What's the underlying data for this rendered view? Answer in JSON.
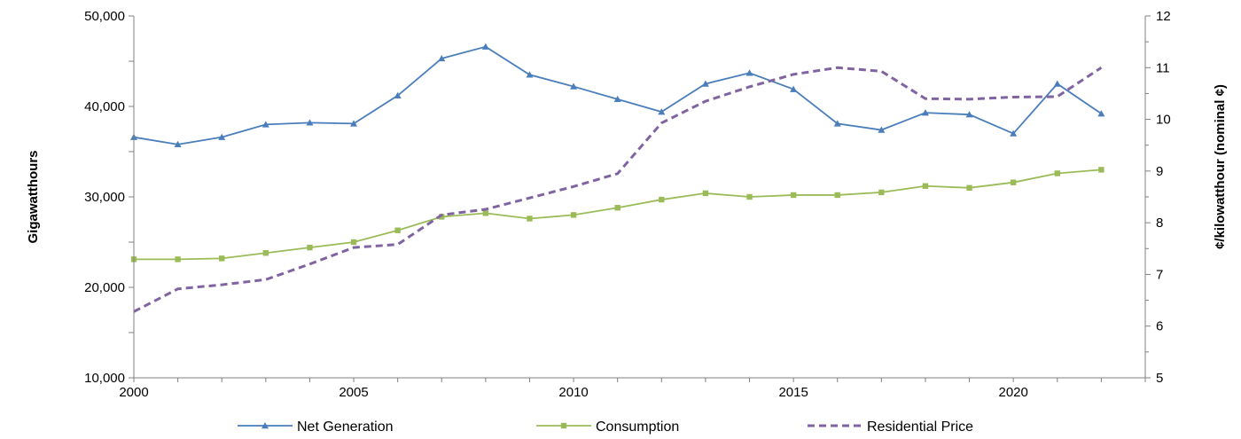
{
  "chart_data": {
    "type": "line",
    "title": "",
    "xlabel": "",
    "ylabel": "Gigawatthours",
    "y2label": "¢/kilowatthour (nominal ¢)",
    "xlim": [
      2000,
      2023
    ],
    "ylim": [
      10000,
      50000
    ],
    "y2lim": [
      5,
      12
    ],
    "grid": false,
    "legend": "bottom",
    "x_ticks": [
      2000,
      2005,
      2010,
      2015,
      2020
    ],
    "y_ticks": [
      10000,
      20000,
      30000,
      40000,
      50000
    ],
    "y_tick_labels": [
      "10,000",
      "20,000",
      "30,000",
      "40,000",
      "50,000"
    ],
    "y2_ticks": [
      5,
      6,
      7,
      8,
      9,
      10,
      11,
      12
    ],
    "x": [
      2000,
      2001,
      2002,
      2003,
      2004,
      2005,
      2006,
      2007,
      2008,
      2009,
      2010,
      2011,
      2012,
      2013,
      2014,
      2015,
      2016,
      2017,
      2018,
      2019,
      2020,
      2021,
      2022
    ],
    "series": [
      {
        "name": "Net Generation",
        "axis": "left",
        "color": "#4a7ebb",
        "marker": "triangle",
        "style": "solid",
        "values": [
          36600,
          35800,
          36600,
          38000,
          38200,
          38100,
          41200,
          45300,
          46600,
          43500,
          42200,
          40800,
          39400,
          42500,
          43700,
          41900,
          38100,
          37400,
          39300,
          39100,
          37000,
          42500,
          39200
        ]
      },
      {
        "name": "Consumption",
        "axis": "left",
        "color": "#9bbb59",
        "marker": "square",
        "style": "solid",
        "values": [
          23100,
          23100,
          23200,
          23800,
          24400,
          25000,
          26300,
          27800,
          28200,
          27600,
          28000,
          28800,
          29700,
          30400,
          30000,
          30200,
          30200,
          30500,
          31200,
          31000,
          31600,
          32600,
          33000
        ]
      },
      {
        "name": "Residential Price",
        "axis": "right",
        "color": "#8064a2",
        "marker": "none",
        "style": "dashed",
        "values": [
          6.28,
          6.72,
          6.8,
          6.9,
          7.2,
          7.52,
          7.58,
          8.15,
          8.26,
          8.48,
          8.7,
          8.95,
          9.93,
          10.35,
          10.63,
          10.87,
          11.0,
          10.93,
          10.4,
          10.39,
          10.43,
          10.44,
          11.0
        ]
      }
    ]
  }
}
